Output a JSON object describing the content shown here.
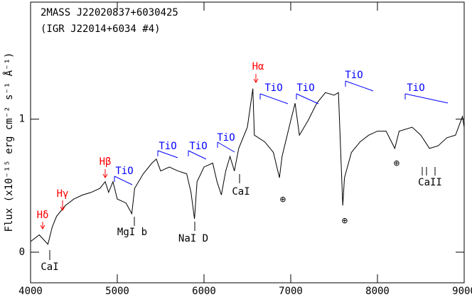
{
  "chart_data": {
    "type": "line",
    "title": "2MASS J22020837+6030425",
    "subtitle": "(IGR J22014+6034 #4)",
    "y_label": "Flux (x10⁻¹⁵ erg cm⁻² s⁻¹ Å⁻¹)",
    "x": [
      4000,
      4100,
      4200,
      4250,
      4300,
      4400,
      4500,
      4600,
      4700,
      4800,
      4861,
      4900,
      4950,
      5000,
      5100,
      5167,
      5200,
      5300,
      5400,
      5450,
      5500,
      5600,
      5700,
      5800,
      5850,
      5890,
      5920,
      6000,
      6100,
      6150,
      6200,
      6250,
      6300,
      6350,
      6400,
      6500,
      6563,
      6580,
      6700,
      6800,
      6870,
      6900,
      7000,
      7050,
      7100,
      7200,
      7300,
      7400,
      7500,
      7550,
      7600,
      7620,
      7700,
      7800,
      7900,
      8000,
      8100,
      8200,
      8250,
      8400,
      8500,
      8600,
      8700,
      8800,
      8900,
      8980,
      9000
    ],
    "series": [
      {
        "color": "#000000",
        "values": [
          0.08,
          0.13,
          0.06,
          0.19,
          0.27,
          0.35,
          0.4,
          0.43,
          0.45,
          0.48,
          0.53,
          0.45,
          0.53,
          0.4,
          0.37,
          0.29,
          0.48,
          0.59,
          0.67,
          0.7,
          0.61,
          0.64,
          0.61,
          0.59,
          0.45,
          0.25,
          0.53,
          0.64,
          0.67,
          0.53,
          0.43,
          0.61,
          0.72,
          0.61,
          0.78,
          0.94,
          1.23,
          0.88,
          0.83,
          0.75,
          0.56,
          0.72,
          0.99,
          1.12,
          0.88,
          0.99,
          1.12,
          1.2,
          1.18,
          1.2,
          0.35,
          0.56,
          0.75,
          0.83,
          0.88,
          0.91,
          0.91,
          0.78,
          0.91,
          0.94,
          0.88,
          0.78,
          0.8,
          0.86,
          0.88,
          1.02,
          0.94
        ]
      }
    ],
    "xlim": [
      4000,
      9000
    ],
    "xticks": [
      4000,
      5000,
      6000,
      7000,
      8000,
      9000
    ],
    "ylim": [
      -0.23,
      1.88
    ],
    "yticks": [
      0,
      1
    ],
    "annotations": [
      {
        "text": "Hδ",
        "color": "#ff0000"
      },
      {
        "text": "Hγ",
        "color": "#ff0000"
      },
      {
        "text": "Hβ",
        "color": "#ff0000"
      },
      {
        "text": "Hα",
        "color": "#ff0000"
      },
      {
        "text": "TiO",
        "color": "#0000ff"
      },
      {
        "text": "TiO",
        "color": "#0000ff"
      },
      {
        "text": "TiO",
        "color": "#0000ff"
      },
      {
        "text": "TiO",
        "color": "#0000ff"
      },
      {
        "text": "TiO",
        "color": "#0000ff"
      },
      {
        "text": "TiO",
        "color": "#0000ff"
      },
      {
        "text": "TiO",
        "color": "#0000ff"
      },
      {
        "text": "TiO",
        "color": "#0000ff"
      },
      {
        "text": "CaI",
        "color": "#000000"
      },
      {
        "text": "MgI b",
        "color": "#000000"
      },
      {
        "text": "NaI D",
        "color": "#000000"
      },
      {
        "text": "CaI",
        "color": "#000000"
      },
      {
        "text": "CaII",
        "color": "#000000"
      },
      {
        "text": "⊕",
        "color": "#000000"
      },
      {
        "text": "⊕",
        "color": "#000000"
      },
      {
        "text": "⊕",
        "color": "#000000"
      }
    ]
  }
}
